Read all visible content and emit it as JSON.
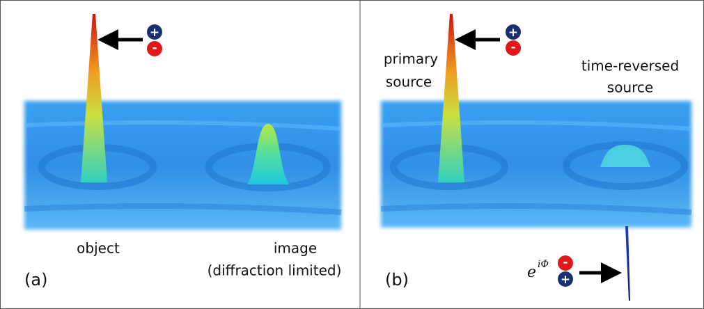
{
  "panels": [
    {
      "label": "(a)",
      "captions": [
        "object",
        "image",
        "(diffraction limited)"
      ],
      "charge": {
        "top": "+",
        "bottom": "-"
      }
    },
    {
      "label": "(b)",
      "captions": [
        "primary",
        "source",
        "time-reversed",
        "source"
      ],
      "charge": {
        "top": "+",
        "bottom": "-"
      },
      "lower_charge": {
        "top": "-",
        "bottom": "+"
      },
      "phase": {
        "base": "e",
        "exponent": "iΦ"
      }
    }
  ]
}
